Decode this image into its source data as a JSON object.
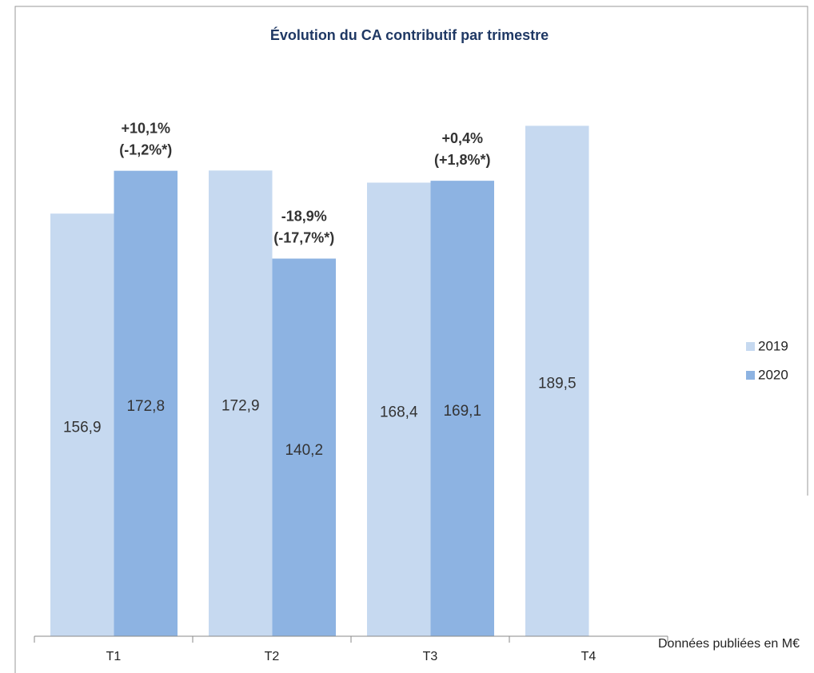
{
  "chart_data": {
    "type": "bar",
    "title": "Évolution du CA contributif par trimestre",
    "categories": [
      "T1",
      "T2",
      "T3",
      "T4"
    ],
    "series": [
      {
        "name": "2019",
        "color": "#c6d9f0",
        "values": [
          156.9,
          172.9,
          168.4,
          189.5
        ],
        "value_labels": [
          "156,9",
          "172,9",
          "168,4",
          "189,5"
        ]
      },
      {
        "name": "2020",
        "color": "#8db3e2",
        "values": [
          172.8,
          140.2,
          169.1,
          null
        ],
        "value_labels": [
          "172,8",
          "140,2",
          "169,1",
          null
        ]
      }
    ],
    "annotations": [
      [
        "+10,1%",
        "(-1,2%*)"
      ],
      [
        "-18,9%",
        "(-17,7%*)"
      ],
      [
        "+0,4%",
        "(+1,8%*)"
      ],
      null
    ],
    "ylim": [
      0,
      200
    ],
    "legend": "right",
    "footnote": "Données publiées en M€"
  }
}
